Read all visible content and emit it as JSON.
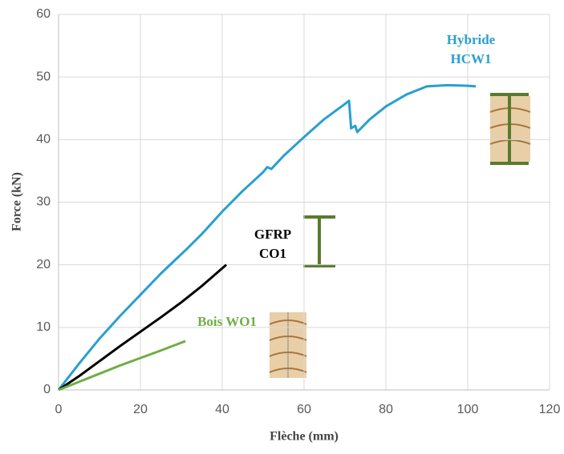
{
  "chart_data": {
    "type": "line",
    "x_label": "Flèche (mm)",
    "y_label": "Force (kN)",
    "xlim": [
      0,
      120
    ],
    "xticks": [
      0,
      20,
      40,
      60,
      80,
      100,
      120
    ],
    "ylim": [
      0,
      60
    ],
    "yticks": [
      0,
      10,
      20,
      30,
      40,
      50,
      60
    ],
    "grid": true,
    "series": [
      {
        "name": "Hybride HCW1",
        "color": "#2a9fd0",
        "x": [
          0,
          5,
          10,
          15,
          20,
          25,
          30,
          31,
          35,
          40,
          45,
          50,
          51,
          52,
          55,
          60,
          65,
          70,
          71,
          71.5,
          72.5,
          73,
          76,
          80,
          85,
          90,
          95,
          100,
          102
        ],
        "values": [
          0,
          4.2,
          8.2,
          11.8,
          15.2,
          18.6,
          21.7,
          22.3,
          24.9,
          28.5,
          31.8,
          34.8,
          35.6,
          35.3,
          37.4,
          40.4,
          43.3,
          45.7,
          46.2,
          41.8,
          42.2,
          41.2,
          43.2,
          45.3,
          47.2,
          48.5,
          48.7,
          48.6,
          48.5
        ]
      },
      {
        "name": "GFRP CO1",
        "color": "#000000",
        "x": [
          0,
          5,
          10,
          15,
          20,
          25,
          30,
          35,
          41
        ],
        "values": [
          0,
          2.2,
          4.6,
          7.0,
          9.3,
          11.6,
          14.0,
          16.6,
          20.0
        ]
      },
      {
        "name": "Bois WO1",
        "color": "#70ad47",
        "x": [
          0,
          5,
          10,
          15,
          20,
          25,
          31
        ],
        "values": [
          0,
          1.3,
          2.6,
          3.9,
          5.1,
          6.3,
          7.8
        ]
      }
    ]
  }
}
